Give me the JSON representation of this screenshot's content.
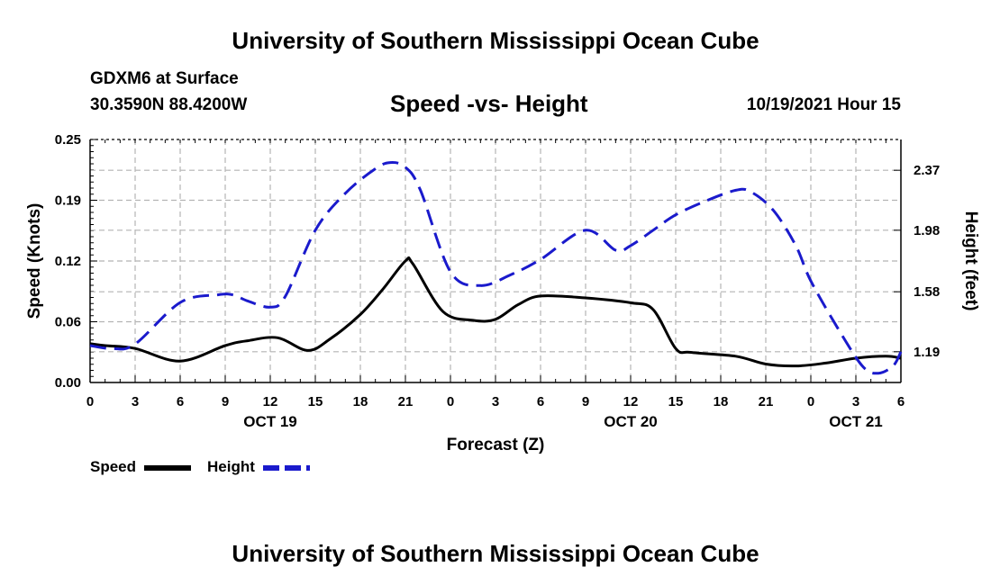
{
  "header": {
    "title": "University of Southern Mississippi Ocean Cube",
    "station": "GDXM6 at Surface",
    "coordinates": "30.3590N  88.4200W",
    "subtitle": "Speed -vs- Height",
    "datetime": "10/19/2021 Hour 15"
  },
  "footer": {
    "title": "University of Southern Mississippi Ocean Cube"
  },
  "legend": {
    "speed_label": "Speed",
    "height_label": "Height"
  },
  "colors": {
    "speed": "#000000",
    "height": "#1a1acc",
    "grid": "#b4b4b4"
  },
  "chart_data": {
    "type": "line",
    "xlabel": "Forecast (Z)",
    "ylabel_left": "Speed (Knots)",
    "ylabel_right": "Height (feet)",
    "x_tick_labels": [
      "0",
      "3",
      "6",
      "9",
      "12",
      "15",
      "18",
      "21",
      "0",
      "3",
      "6",
      "9",
      "12",
      "15",
      "18",
      "21",
      "0",
      "3",
      "6"
    ],
    "date_labels": [
      {
        "label": "OCT 19",
        "hour": 12
      },
      {
        "label": "OCT 20",
        "hour": 36
      },
      {
        "label": "OCT 21",
        "hour": 51
      }
    ],
    "x_range_hours": [
      0,
      54
    ],
    "y_left_ticks": [
      "0.00",
      "0.06",
      "0.12",
      "0.19",
      "0.25"
    ],
    "y_left_range": [
      0,
      0.25
    ],
    "y_right_ticks": [
      "1.19",
      "1.58",
      "1.98",
      "2.37"
    ],
    "y_right_range": [
      0.99,
      2.57
    ],
    "series": [
      {
        "name": "Speed",
        "axis": "left",
        "style": "solid",
        "x": [
          0,
          1,
          3,
          6,
          9,
          10.5,
          12.5,
          14.5,
          16,
          18,
          19.5,
          21,
          21.5,
          23.5,
          25.5,
          27,
          28.5,
          30,
          33,
          36,
          37.5,
          39,
          40,
          43,
          45,
          47,
          49,
          51,
          53,
          54
        ],
        "y": [
          0.04,
          0.038,
          0.035,
          0.022,
          0.038,
          0.043,
          0.046,
          0.033,
          0.045,
          0.07,
          0.096,
          0.125,
          0.122,
          0.073,
          0.064,
          0.065,
          0.08,
          0.089,
          0.087,
          0.082,
          0.075,
          0.035,
          0.031,
          0.027,
          0.019,
          0.017,
          0.02,
          0.025,
          0.027,
          0.025
        ]
      },
      {
        "name": "Height",
        "axis": "right",
        "style": "dashed",
        "x": [
          0,
          1.5,
          3,
          6,
          8.5,
          9.5,
          10.5,
          12,
          13,
          15,
          17,
          19,
          20,
          21,
          22,
          24,
          26,
          28,
          30,
          33,
          35,
          36,
          37.5,
          39,
          41,
          43,
          44,
          45.5,
          47,
          48,
          50,
          51.5,
          52.5,
          53.5,
          54
        ],
        "y": [
          1.23,
          1.21,
          1.24,
          1.51,
          1.56,
          1.56,
          1.52,
          1.48,
          1.55,
          1.98,
          2.22,
          2.38,
          2.42,
          2.39,
          2.24,
          1.71,
          1.62,
          1.69,
          1.79,
          1.98,
          1.85,
          1.88,
          1.98,
          2.08,
          2.17,
          2.24,
          2.23,
          2.11,
          1.88,
          1.65,
          1.31,
          1.09,
          1.05,
          1.1,
          1.19
        ]
      }
    ]
  }
}
